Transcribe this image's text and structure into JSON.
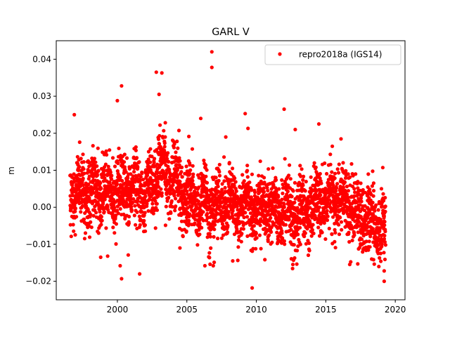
{
  "chart_data": {
    "type": "scatter",
    "title": "GARL V",
    "xlabel": "",
    "ylabel": "m",
    "xlim": [
      1995.6,
      2020.7
    ],
    "ylim": [
      -0.025,
      0.045
    ],
    "xticks": [
      2000,
      2005,
      2010,
      2015,
      2020
    ],
    "xtick_labels": [
      "2000",
      "2005",
      "2010",
      "2015",
      "2020"
    ],
    "yticks": [
      -0.02,
      -0.01,
      0.0,
      0.01,
      0.02,
      0.03,
      0.04
    ],
    "ytick_labels": [
      "−0.02",
      "−0.01",
      "0.00",
      "0.01",
      "0.02",
      "0.03",
      "0.04"
    ],
    "grid": false,
    "legend_position": "upper right",
    "series": [
      {
        "name": "repro2018a (IGS14)",
        "color": "#ff0000",
        "marker": "circle",
        "time_range": [
          1996.6,
          2019.3
        ],
        "trend": [
          [
            1996.6,
            0.005
          ],
          [
            1999.0,
            0.004
          ],
          [
            2001.0,
            0.005
          ],
          [
            2002.2,
            0.003
          ],
          [
            2003.0,
            0.011
          ],
          [
            2004.0,
            0.008
          ],
          [
            2005.0,
            0.003
          ],
          [
            2006.5,
            0.0
          ],
          [
            2008.0,
            0.001
          ],
          [
            2010.0,
            0.0
          ],
          [
            2012.0,
            -0.001
          ],
          [
            2013.0,
            -0.002
          ],
          [
            2014.5,
            0.002
          ],
          [
            2016.0,
            0.003
          ],
          [
            2017.0,
            -0.001
          ],
          [
            2018.0,
            -0.004
          ],
          [
            2019.3,
            -0.005
          ]
        ],
        "spread": 0.005,
        "outliers": [
          [
            2006.8,
            0.042
          ],
          [
            2006.8,
            0.0378
          ],
          [
            2002.8,
            0.0365
          ],
          [
            2003.2,
            0.0363
          ],
          [
            2000.3,
            0.0328
          ],
          [
            2000.0,
            0.0288
          ],
          [
            2003.0,
            0.0305
          ],
          [
            2012.0,
            0.0265
          ],
          [
            2009.2,
            0.0253
          ],
          [
            1996.9,
            0.025
          ],
          [
            2014.5,
            0.0225
          ],
          [
            2009.4,
            0.0213
          ],
          [
            2012.8,
            0.021
          ],
          [
            2007.8,
            0.019
          ],
          [
            2006.0,
            0.024
          ],
          [
            2009.7,
            -0.0218
          ],
          [
            2000.3,
            -0.0193
          ],
          [
            2001.6,
            -0.018
          ],
          [
            2000.2,
            -0.0158
          ],
          [
            2006.3,
            -0.0158
          ],
          [
            2006.9,
            -0.0158
          ],
          [
            2019.2,
            -0.02
          ],
          [
            2019.2,
            -0.0172
          ],
          [
            1998.8,
            -0.0135
          ],
          [
            1999.3,
            -0.0132
          ],
          [
            2013.0,
            -0.0105
          ],
          [
            2017.3,
            -0.0153
          ],
          [
            2018.3,
            -0.014
          ],
          [
            2008.3,
            -0.0145
          ],
          [
            2004.5,
            -0.011
          ]
        ]
      }
    ]
  }
}
